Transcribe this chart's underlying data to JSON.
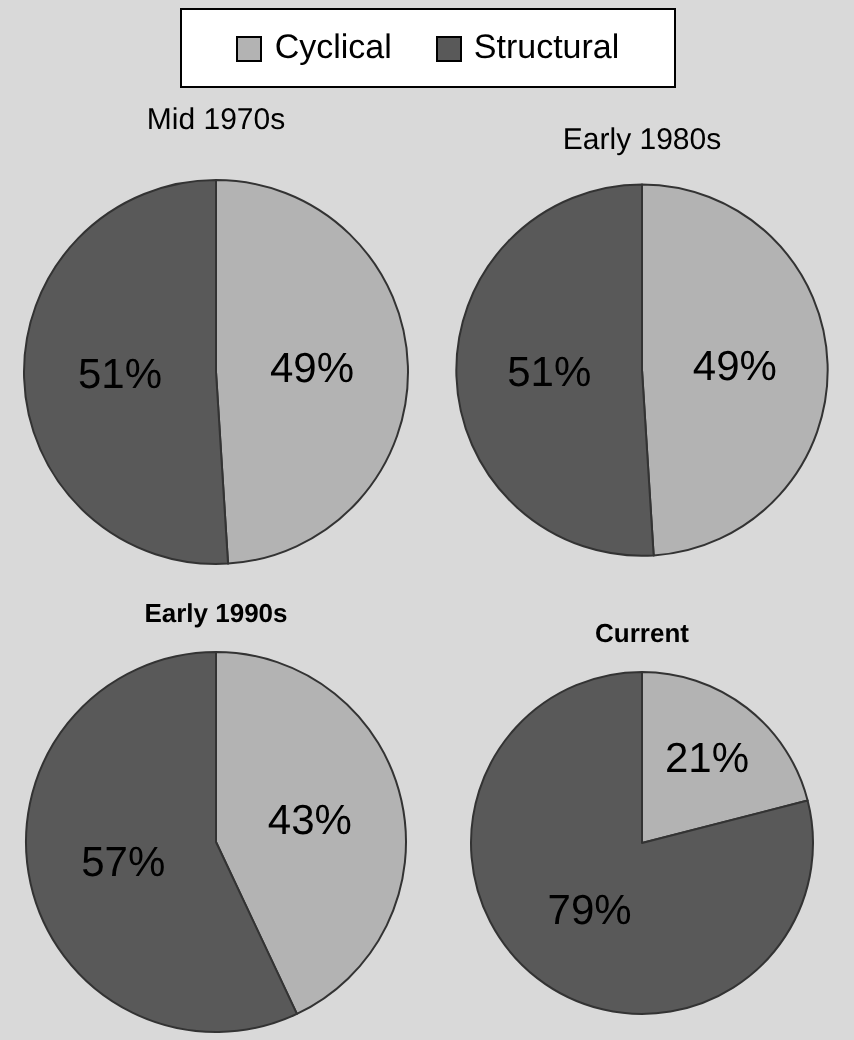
{
  "chart_data": [
    {
      "type": "pie",
      "title": "Mid 1970s",
      "categories": [
        "Cyclical",
        "Structural"
      ],
      "values": [
        49,
        51
      ],
      "colors": [
        "#b3b3b3",
        "#595959"
      ],
      "value_labels": [
        "49%",
        "51%"
      ],
      "legend": "top"
    },
    {
      "type": "pie",
      "title": "Early 1980s",
      "categories": [
        null,
        null
      ],
      "values": [
        49,
        51
      ],
      "colors": [
        "#b3b3b3",
        "#595959"
      ],
      "value_labels": [
        "49%",
        "51%"
      ]
    },
    {
      "type": "pie",
      "title": "Early 1990s",
      "categories": [
        null,
        null
      ],
      "values": [
        43,
        57
      ],
      "colors": [
        "#b3b3b3",
        "#595959"
      ],
      "value_labels": [
        "43%",
        "57%"
      ]
    },
    {
      "type": "pie",
      "title": "Current",
      "categories": [
        null,
        null
      ],
      "values": [
        21,
        79
      ],
      "colors": [
        "#b3b3b3",
        "#595959"
      ],
      "value_labels": [
        "21%",
        "79%"
      ]
    }
  ]
}
